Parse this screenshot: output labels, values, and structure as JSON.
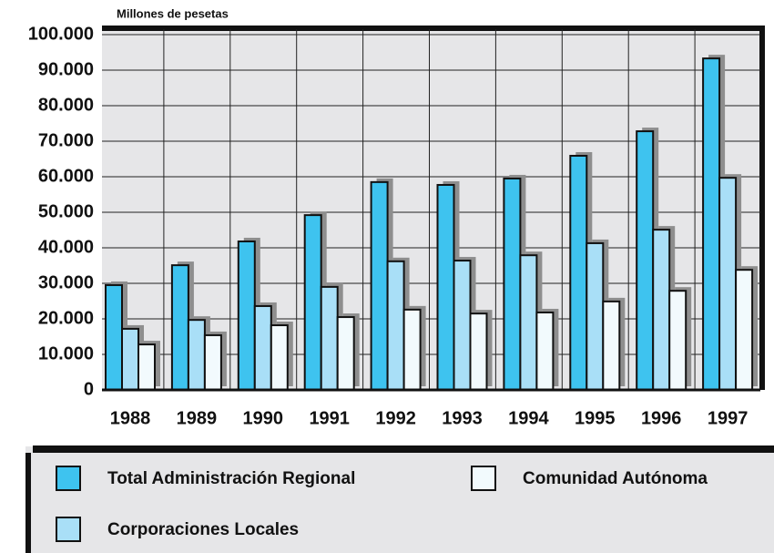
{
  "chart_data": {
    "type": "bar",
    "title": "Millones de pesetas",
    "categories": [
      "1988",
      "1989",
      "1990",
      "1991",
      "1992",
      "1993",
      "1994",
      "1995",
      "1996",
      "1997"
    ],
    "series": [
      {
        "name": "Total Administración Regional",
        "color": "#3ec3ef",
        "values": [
          29.5,
          35.1,
          41.8,
          49.2,
          58.5,
          57.7,
          59.5,
          65.9,
          72.8,
          93.3
        ]
      },
      {
        "name": "Corporaciones Locales",
        "color": "#a9dff7",
        "values": [
          17.2,
          19.7,
          23.6,
          29.0,
          36.2,
          36.4,
          37.9,
          41.3,
          45.1,
          59.7
        ]
      },
      {
        "name": "Comunidad Autónoma",
        "color": "#f2fafd",
        "values": [
          12.8,
          15.4,
          18.2,
          20.5,
          22.6,
          21.5,
          21.8,
          24.9,
          27.9,
          33.8
        ]
      }
    ],
    "ylim": [
      0,
      100
    ],
    "yticks": [
      0,
      {
        "value": 10,
        "label": "10.000"
      },
      {
        "value": 20,
        "label": "20.000"
      },
      {
        "value": 30,
        "label": "30.000"
      },
      {
        "value": 40,
        "label": "40.000"
      },
      {
        "value": 50,
        "label": "50.000"
      },
      {
        "value": 60,
        "label": "60.000"
      },
      {
        "value": 70,
        "label": "70.000"
      },
      {
        "value": 80,
        "label": "80.000"
      },
      {
        "value": 90,
        "label": "90.000"
      },
      {
        "value": 100,
        "label": "100.000"
      }
    ],
    "grid": true
  }
}
